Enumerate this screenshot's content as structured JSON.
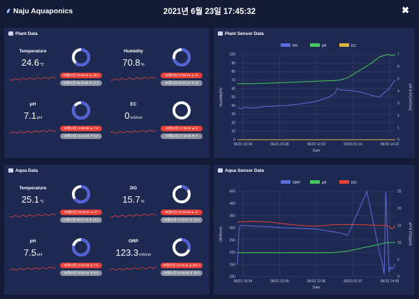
{
  "app": {
    "brand": "Naju Aquaponics",
    "datetime": "2021년 6월 23일 17:45:32",
    "close_label": "✖"
  },
  "plant_data": {
    "title": "Plant Data",
    "cards": [
      {
        "label": "Temperature",
        "value": "24.6",
        "unit": "℃",
        "ring": 0.62,
        "max": "06월21일 13:43:15 ▲ 33.2",
        "min": "06월21일 06:11:58 ▼ 17.2"
      },
      {
        "label": "Humidity",
        "value": "70.8",
        "unit": "%",
        "ring": 0.71,
        "max": "06월22일 17:53:19 ▲ 71",
        "min": "06월21일 20:31:44 ▼ 25"
      },
      {
        "label": "pH",
        "value": "7.1",
        "unit": "pH",
        "ring": 0.85,
        "max": "06월21일 14:08:09 ▲ 7.8",
        "min": "06월21일 12:14:24 ▼ 5.8"
      },
      {
        "label": "EC",
        "value": "0",
        "unit": "mS/cm",
        "ring": 0.0,
        "max": "06월21일 17:43:24 ▲ 0",
        "min": "06월21일 17:43:24 ▼ 0"
      }
    ]
  },
  "aqua_data": {
    "title": "Aqua Data",
    "cards": [
      {
        "label": "Temperature",
        "value": "25.1",
        "unit": "℃",
        "ring": 0.65,
        "max": "06월21일 09:40:07 ▲ 27",
        "min": "06월21일 06:27:19 ▼ 16.3"
      },
      {
        "label": "DO",
        "value": "15.7",
        "unit": "%",
        "ring": 0.16,
        "max": "06월21일 16:22:45 ▲ 17",
        "min": "06월21일 17:03:11 ▼ 13.4"
      },
      {
        "label": "pH",
        "value": "7.5",
        "unit": "pH",
        "ring": 0.78,
        "max": "06월21일 12:44:15 ▲ 7.5",
        "min": "06월21일 19:50:14 ▼ 5.9"
      },
      {
        "label": "ORP",
        "value": "123.3",
        "unit": "mS/cm",
        "ring": 0.3,
        "max": "06월21일 13:14:16 ▲ 511.7",
        "min": "06월21일 13:40:28 ▼ 22.8"
      }
    ]
  },
  "chart_data": [
    {
      "title": "Plant Sensor Data",
      "type": "line",
      "legend": [
        "RH",
        "pH",
        "EC"
      ],
      "xlabel": "Date",
      "ylabel_left": "Humidity(%)",
      "ylabel_right": "pH & EC(mS/cm)",
      "x_ticks": [
        "06/21 10:34",
        "06/21 23:28",
        "06/22 12:22",
        "06/23 01:16",
        "06/23 14:10"
      ],
      "left_ticks": [
        "0",
        "10",
        "20",
        "30",
        "40",
        "50",
        "60",
        "70",
        "80",
        "90",
        "100"
      ],
      "right_ticks": [
        "0",
        "1",
        "2",
        "3",
        "4",
        "5",
        "6",
        "7"
      ],
      "series": [
        {
          "name": "RH",
          "color": "#5b6fdc",
          "axis": "left",
          "x": [
            0,
            0.02,
            0.05,
            0.1,
            0.18,
            0.3,
            0.4,
            0.5,
            0.58,
            0.62,
            0.63,
            0.66,
            0.7,
            0.75,
            0.8,
            0.85,
            0.9,
            0.93,
            0.96,
            0.98,
            1.0
          ],
          "values": [
            38,
            36,
            38,
            37,
            39,
            40,
            42,
            45,
            50,
            55,
            60,
            58,
            58,
            57,
            55,
            52,
            50,
            55,
            60,
            65,
            70
          ]
        },
        {
          "name": "pH",
          "color": "#44c95c",
          "axis": "right",
          "x": [
            0,
            0.1,
            0.2,
            0.3,
            0.4,
            0.5,
            0.6,
            0.65,
            0.7,
            0.75,
            0.8,
            0.85,
            0.9,
            0.95,
            0.98,
            1.0
          ],
          "values": [
            4.6,
            4.6,
            4.65,
            4.7,
            4.75,
            4.8,
            4.85,
            4.9,
            5.1,
            5.5,
            5.9,
            6.3,
            6.8,
            7.0,
            6.9,
            7.0
          ]
        },
        {
          "name": "EC",
          "color": "#e3b341",
          "axis": "right",
          "x": [
            0,
            1
          ],
          "values": [
            0,
            0
          ]
        }
      ]
    },
    {
      "title": "Aqua Sensor Data",
      "type": "line",
      "legend": [
        "ORP",
        "pH",
        "DO"
      ],
      "xlabel": "Date",
      "ylabel_left": "ORP(mV)",
      "ylabel_right": "pH & DO(ppm)",
      "x_ticks": [
        "06/21 10:34",
        "06/21 23:35",
        "06/22 12:36",
        "06/23 01:37",
        "06/23 14:38"
      ],
      "left_ticks": [
        "100",
        "150",
        "200",
        "250",
        "300",
        "350",
        "400",
        "450"
      ],
      "right_ticks": [
        "0",
        "5",
        "10",
        "15",
        "20",
        "25"
      ],
      "series": [
        {
          "name": "ORP",
          "color": "#5b6fdc",
          "axis": "left",
          "x": [
            0,
            0.01,
            0.02,
            0.1,
            0.2,
            0.3,
            0.4,
            0.5,
            0.55,
            0.6,
            0.65,
            0.7,
            0.82,
            0.9,
            0.92,
            0.93,
            0.94,
            0.96,
            0.97,
            0.98,
            1.0
          ],
          "values": [
            150,
            300,
            310,
            308,
            305,
            300,
            298,
            295,
            290,
            285,
            280,
            270,
            450,
            200,
            150,
            110,
            450,
            120,
            140,
            130,
            150
          ]
        },
        {
          "name": "pH",
          "color": "#44c95c",
          "axis": "right",
          "x": [
            0,
            0.2,
            0.4,
            0.6,
            0.7,
            0.8,
            0.9,
            0.95,
            1.0
          ],
          "values": [
            7.0,
            7.0,
            7.0,
            7.0,
            7.5,
            8.5,
            9.5,
            10.0,
            10.0
          ]
        },
        {
          "name": "DO",
          "color": "#e8413a",
          "axis": "right",
          "x": [
            0,
            0.1,
            0.2,
            0.3,
            0.4,
            0.5,
            0.6,
            0.7,
            0.8,
            0.9,
            0.95,
            0.97,
            0.98,
            1.0
          ],
          "values": [
            16,
            16.2,
            16,
            15.5,
            15,
            14.8,
            15.2,
            15.3,
            15.2,
            15,
            15,
            14.5,
            14,
            15
          ]
        }
      ]
    }
  ]
}
